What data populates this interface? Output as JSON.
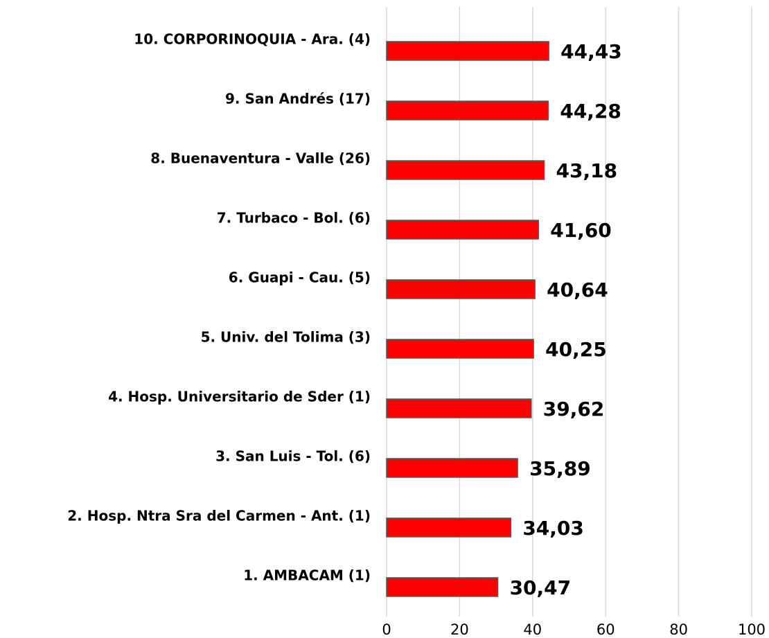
{
  "chart_data": {
    "type": "bar",
    "orientation": "horizontal",
    "categories": [
      "10. CORPORINOQUIA - Ara. (4)",
      "9. San Andrés (17)",
      "8. Buenaventura - Valle (26)",
      "7. Turbaco - Bol. (6)",
      "6. Guapi - Cau. (5)",
      "5. Univ. del Tolima (3)",
      "4. Hosp. Universitario de Sder  (1)",
      "3. San Luis - Tol. (6)",
      "2. Hosp. Ntra Sra del Carmen  - Ant. (1)",
      "1. AMBACAM (1)"
    ],
    "values": [
      44.43,
      44.28,
      43.18,
      41.6,
      40.64,
      40.25,
      39.62,
      35.89,
      34.03,
      30.47
    ],
    "value_labels": [
      "44,43",
      "44,28",
      "43,18",
      "41,60",
      "40,64",
      "40,25",
      "39,62",
      "35,89",
      "34,03",
      "30,47"
    ],
    "color": "#ff0000",
    "xlim": [
      0,
      100
    ],
    "xticks": [
      0,
      20,
      40,
      60,
      80,
      100
    ],
    "grid": true
  }
}
